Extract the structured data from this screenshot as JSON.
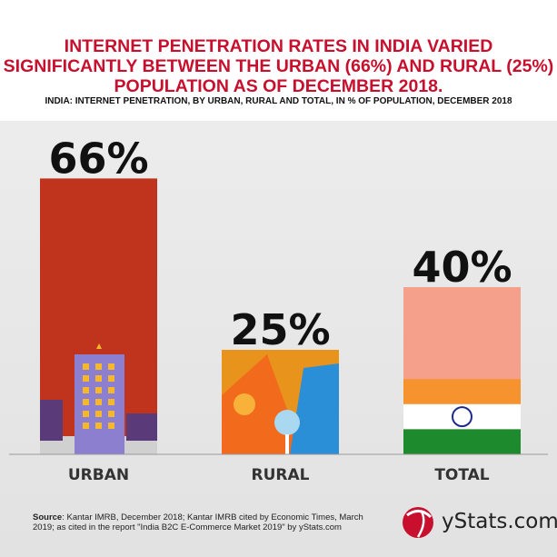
{
  "header": {
    "title": "INTERNET PENETRATION RATES IN INDIA VARIED SIGNIFICANTLY BETWEEN THE URBAN (66%) AND RURAL (25%) POPULATION AS OF DECEMBER 2018.",
    "subtitle": "INDIA: INTERNET PENETRATION, BY URBAN, RURAL AND TOTAL, IN % OF POPULATION, DECEMBER 2018"
  },
  "chart_data": {
    "type": "bar",
    "title": "INDIA: INTERNET PENETRATION, BY URBAN, RURAL AND TOTAL, IN % OF POPULATION, DECEMBER 2018",
    "categories": [
      "URBAN",
      "RURAL",
      "TOTAL"
    ],
    "values": [
      66,
      25,
      40
    ],
    "data_labels": [
      "66%",
      "25%",
      "40%"
    ],
    "unit": "%",
    "ylim": [
      0,
      100
    ],
    "grid": false,
    "colors": [
      "#c0341d",
      "#e8931c",
      "#f4a08a"
    ],
    "flag_colors": {
      "saffron": "#f7932f",
      "white": "#ffffff",
      "green": "#1e8a2e",
      "chakra": "#1b2a8a"
    }
  },
  "footer": {
    "source_label": "Source",
    "source_text": ": Kantar IMRB, December 2018; Kantar IMRB cited by Economic Times, March 2019; as cited in the report \"India B2C E-Commerce Market 2019\" by yStats.com",
    "logo_text": "yStats.com"
  }
}
